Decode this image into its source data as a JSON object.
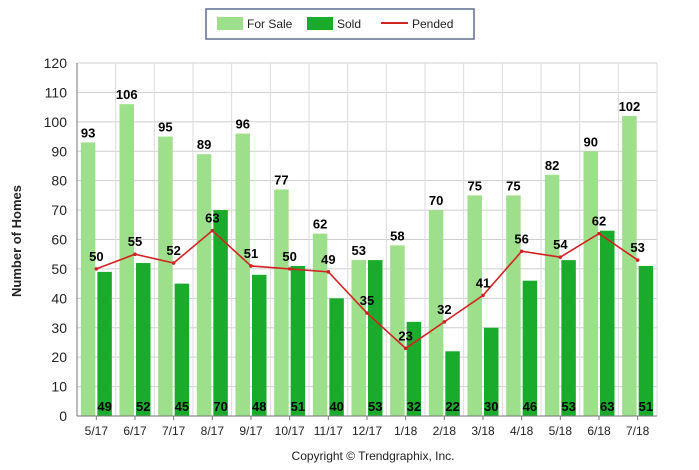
{
  "chart_data": {
    "type": "bar",
    "categories": [
      "5/17",
      "6/17",
      "7/17",
      "8/17",
      "9/17",
      "10/17",
      "11/17",
      "12/17",
      "1/18",
      "2/18",
      "3/18",
      "4/18",
      "5/18",
      "6/18",
      "7/18"
    ],
    "series": [
      {
        "name": "For Sale",
        "type": "bar",
        "color": "#9ddf8a",
        "values": [
          93,
          106,
          95,
          89,
          96,
          77,
          62,
          53,
          58,
          70,
          75,
          75,
          82,
          90,
          102
        ]
      },
      {
        "name": "Sold",
        "type": "bar",
        "color": "#1bab2c",
        "values": [
          49,
          52,
          45,
          70,
          48,
          51,
          40,
          53,
          32,
          22,
          30,
          46,
          53,
          63,
          51
        ]
      },
      {
        "name": "Pended",
        "type": "line",
        "color": "#d22222",
        "values": [
          50,
          55,
          52,
          63,
          51,
          50,
          49,
          35,
          23,
          32,
          41,
          56,
          54,
          62,
          53
        ]
      }
    ],
    "ylabel": "Number of Homes",
    "ylim": [
      0,
      120
    ],
    "yticks": [
      0,
      10,
      20,
      30,
      40,
      50,
      60,
      70,
      80,
      90,
      100,
      110,
      120
    ],
    "grid": true,
    "legend_position": "top-center"
  },
  "copyright": "Copyright © Trendgraphix, Inc."
}
